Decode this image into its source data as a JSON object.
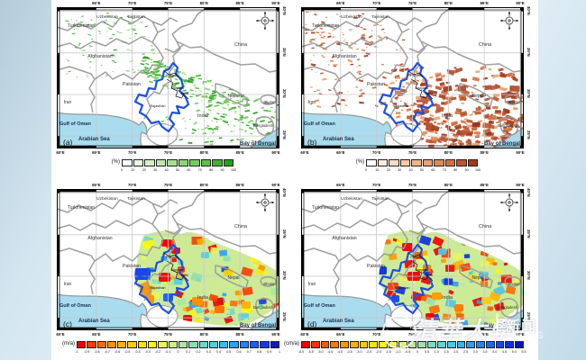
{
  "watermark": {
    "university": "清華大學",
    "divider": "|",
    "news_cn": "新闻",
    "news_en": "NEWS"
  },
  "figure": {
    "axis": {
      "top_ticks": [
        "65°E",
        "70°E",
        "75°E",
        "80°E",
        "85°E",
        "90°E"
      ],
      "bottom_ticks": [
        "60°E",
        "65°E",
        "70°E",
        "75°E",
        "80°E",
        "85°E",
        "90°E"
      ],
      "lat_ticks": [
        "40°N",
        "35°N",
        "30°N",
        "25°N"
      ]
    },
    "place_labels": {
      "countries": [
        "Turkmenistan",
        "Uzbekistan",
        "Tajikistan",
        "Afghanistan",
        "Pakistan",
        "Iran",
        "China",
        "Nepal",
        "India",
        "Bhutan",
        "Bangladesh"
      ],
      "waters": [
        "Gulf of Oman",
        "Arabian Sea",
        "Bay of Bengal"
      ],
      "states": [
        "Punjab",
        "Haryana",
        "Delhi",
        "Rajasthan"
      ]
    },
    "panels": [
      {
        "id": "a",
        "corner_label": "(a)",
        "theme": "green",
        "colorbar": {
          "unit": "(%)",
          "ticks": [
            "0",
            "10",
            "20",
            "30",
            "40",
            "50",
            "60",
            "70",
            "80",
            "90",
            "100"
          ],
          "colors": [
            "#ffffff",
            "#eaf7e4",
            "#d5efc9",
            "#bfe7ae",
            "#a8de93",
            "#90d578",
            "#77cb5e",
            "#5dc045",
            "#42b32e",
            "#23a01c"
          ]
        }
      },
      {
        "id": "b",
        "corner_label": "(b)",
        "theme": "brown",
        "colorbar": {
          "unit": "(%)",
          "ticks": [
            "0",
            "10",
            "20",
            "30",
            "40",
            "50",
            "60",
            "70",
            "80",
            "90",
            "100"
          ],
          "colors": [
            "#ffffff",
            "#fdeee2",
            "#f9dcc5",
            "#f5c9a8",
            "#efb58b",
            "#e8a06f",
            "#df8a54",
            "#d3713e",
            "#bd542e",
            "#a33a1e"
          ]
        }
      },
      {
        "id": "c",
        "corner_label": "(c)",
        "theme": "rainbow_c",
        "colorbar": {
          "unit": "(m/a)",
          "ticks": [
            "-1",
            "-0.9",
            "-0.8",
            "-0.7",
            "-0.6",
            "-0.5",
            "-0.4",
            "-0.3",
            "-0.2",
            "-0.1",
            "0",
            "0.1",
            "0.2",
            "0.3",
            "0.4",
            "0.5",
            "0.6",
            "0.7",
            "0.8",
            "0.9",
            "1"
          ],
          "colors": [
            "#f10000",
            "#fa3c00",
            "#ff6900",
            "#ff8f00",
            "#ffb000",
            "#ffcc00",
            "#ffe400",
            "#fff800",
            "#eaf55c",
            "#cdee8b",
            "#abe79f",
            "#8ae0b6",
            "#6bd8cc",
            "#52cde0",
            "#3fb9ee",
            "#309ff7",
            "#2481fb",
            "#185ffa",
            "#0f3cee",
            "#081cc9"
          ]
        }
      },
      {
        "id": "d",
        "corner_label": "(d)",
        "theme": "rainbow_d",
        "colorbar": {
          "unit": "(cm/a)",
          "ticks": [
            "-6.0",
            "-5.5",
            "-5.0",
            "-4.5",
            "-4.0",
            "-3.5",
            "-3.0",
            "-2.5",
            "-2.0",
            "-1.5",
            "-1.0",
            "-0.5",
            "0",
            "0.5",
            "1.0",
            "1.5",
            "2.0",
            "2.5",
            "3.0",
            "3.5",
            "4.0",
            "4.5",
            "5.0",
            "5.5"
          ],
          "colors": [
            "#f10000",
            "#f93000",
            "#fe5800",
            "#ff7b00",
            "#ff9900",
            "#ffb400",
            "#ffcc00",
            "#ffe200",
            "#fff600",
            "#f2f649",
            "#d9ef7f",
            "#bce99a",
            "#9ce3ad",
            "#7edcc0",
            "#62d4d4",
            "#4cc7e6",
            "#3bb3f1",
            "#2e9cf8",
            "#2484fb",
            "#1b68fa",
            "#124af2",
            "#0a2fdd",
            "#0516b5"
          ]
        }
      }
    ]
  }
}
